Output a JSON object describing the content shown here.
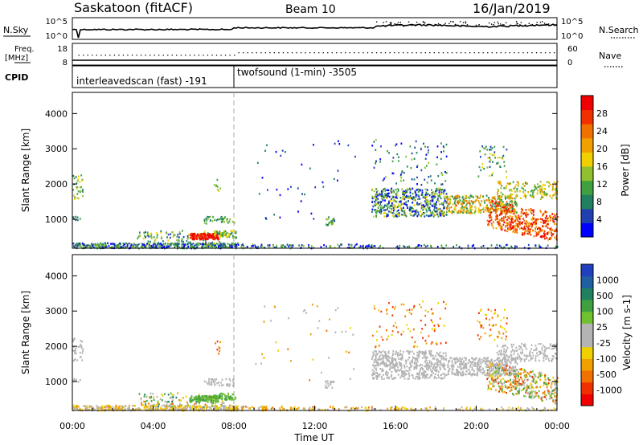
{
  "header": {
    "radar": "Saskatoon (fitACF)",
    "beam": "Beam 10",
    "date": "16/Jan/2019"
  },
  "panels": {
    "noise": {
      "left_label": "N.Sky",
      "left_ticks": [
        "10^5",
        "10^0"
      ],
      "right_ticks": [
        "10^5",
        "10^0"
      ],
      "right_label": "N.Search"
    },
    "freq": {
      "left_label_1": "Freq.",
      "left_label_2": "[MHz]",
      "left_ticks": [
        "18",
        "8"
      ],
      "right_ticks": [
        "60",
        "0"
      ],
      "right_label": "Nave"
    },
    "cpid": {
      "label": "CPID",
      "modes": [
        {
          "name": "interleavedscan (fast) -191",
          "start_h": 0,
          "end_h": 8
        },
        {
          "name": "twofsound (1-min) -3505",
          "start_h": 8,
          "end_h": 24
        }
      ]
    }
  },
  "chart_data": [
    {
      "type": "heatmap",
      "name": "power",
      "ylabel": "Slant Range [km]",
      "xlabel": "",
      "xlim": [
        0,
        24
      ],
      "ylim": [
        180,
        4600
      ],
      "yticks": [
        "1000",
        "2000",
        "3000",
        "4000"
      ],
      "colorbar": {
        "label": "Power [dB]",
        "ticks": [
          "4",
          "8",
          "12",
          "16",
          "20",
          "24",
          "28"
        ],
        "colors": [
          "#0000ff",
          "#2040b0",
          "#208060",
          "#40a040",
          "#90c030",
          "#f0d000",
          "#f0a000",
          "#f07000",
          "#f03000",
          "#f00000"
        ]
      }
    },
    {
      "type": "heatmap",
      "name": "velocity",
      "ylabel": "Slant Range [km]",
      "xlabel": "Time UT",
      "xlim": [
        0,
        24
      ],
      "ylim": [
        180,
        4600
      ],
      "yticks": [
        "1000",
        "2000",
        "3000",
        "4000"
      ],
      "xticks": [
        "00:00",
        "04:00",
        "08:00",
        "12:00",
        "16:00",
        "20:00",
        "00:00"
      ],
      "colorbar": {
        "label": "Velocity [m s-1]",
        "ticks": [
          "1000",
          "500",
          "100",
          "25",
          "-25",
          "-100",
          "-500",
          "-1000"
        ],
        "colors": [
          "#2040c0",
          "#2060a0",
          "#208060",
          "#40a040",
          "#70c030",
          "#b4b4b4",
          "#b4b4b4",
          "#f0d000",
          "#f0a000",
          "#f07000",
          "#f03000",
          "#f00000"
        ]
      }
    }
  ]
}
